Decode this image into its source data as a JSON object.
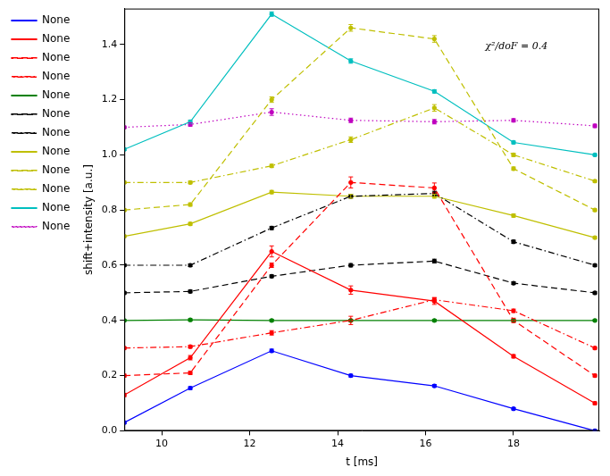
{
  "chart_data": {
    "type": "line",
    "x_label": "t [ms]",
    "y_label": "shift+intensity [a.u.]",
    "annotation": "χ²/doF = 0.4",
    "x": [
      9.15,
      10.65,
      12.5,
      14.3,
      16.2,
      18.0,
      19.85
    ],
    "xlim": [
      9.15,
      19.95
    ],
    "xticks": [
      10,
      12,
      14,
      16,
      18
    ],
    "ylim": [
      0,
      1.53
    ],
    "yticks": [
      {
        "value": 0,
        "label": "0.0"
      },
      0.2,
      0.4,
      0.6,
      0.8,
      {
        "value": 1,
        "label": "1.0"
      },
      1.2,
      1.4
    ],
    "grid": false,
    "legend": "upper left",
    "marker": "point",
    "series": [
      {
        "name": "None",
        "color": "#0000ff",
        "line_style": "solid",
        "values": [
          0.03,
          0.155,
          0.29,
          0.2,
          0.163,
          0.08,
          0.0
        ],
        "errors": [
          0.004,
          0.005,
          0.006,
          0.005,
          0.005,
          0.004,
          0.004
        ]
      },
      {
        "name": "None",
        "color": "#ff0000",
        "line_style": "solid",
        "values": [
          0.13,
          0.265,
          0.65,
          0.51,
          0.47,
          0.27,
          0.1
        ],
        "errors": [
          0.006,
          0.008,
          0.02,
          0.015,
          0.012,
          0.006,
          0.005
        ]
      },
      {
        "name": "None",
        "color": "#ff0000",
        "line_style": "dashed",
        "values": [
          0.2,
          0.21,
          0.6,
          0.9,
          0.88,
          0.4,
          0.2
        ],
        "errors": [
          0.005,
          0.006,
          0.008,
          0.02,
          0.018,
          0.008,
          0.005
        ]
      },
      {
        "name": "None",
        "color": "#ff0000",
        "line_style": "dashdot",
        "values": [
          0.3,
          0.305,
          0.355,
          0.4,
          0.475,
          0.435,
          0.3
        ],
        "errors": [
          0.004,
          0.005,
          0.008,
          0.015,
          0.008,
          0.006,
          0.004
        ]
      },
      {
        "name": "None",
        "color": "#008000",
        "line_style": "solid",
        "values": [
          0.4,
          0.402,
          0.4,
          0.4,
          0.4,
          0.4,
          0.4
        ],
        "errors": [
          0.003,
          0.004,
          0.004,
          0.004,
          0.004,
          0.004,
          0.003
        ]
      },
      {
        "name": "None",
        "color": "#000000",
        "line_style": "dashed",
        "values": [
          0.5,
          0.505,
          0.56,
          0.6,
          0.615,
          0.535,
          0.5
        ],
        "errors": [
          0.004,
          0.005,
          0.005,
          0.006,
          0.007,
          0.005,
          0.004
        ]
      },
      {
        "name": "None",
        "color": "#000000",
        "line_style": "dashdot",
        "values": [
          0.6,
          0.6,
          0.735,
          0.85,
          0.86,
          0.685,
          0.6
        ],
        "errors": [
          0.004,
          0.005,
          0.006,
          0.007,
          0.008,
          0.006,
          0.004
        ]
      },
      {
        "name": "None",
        "color": "#bfbf00",
        "line_style": "solid",
        "values": [
          0.705,
          0.75,
          0.865,
          0.85,
          0.85,
          0.78,
          0.7
        ],
        "errors": [
          0.004,
          0.005,
          0.006,
          0.007,
          0.007,
          0.006,
          0.004
        ]
      },
      {
        "name": "None",
        "color": "#bfbf00",
        "line_style": "dashed",
        "values": [
          0.8,
          0.82,
          1.2,
          1.46,
          1.42,
          0.95,
          0.8
        ],
        "errors": [
          0.004,
          0.006,
          0.01,
          0.012,
          0.012,
          0.006,
          0.004
        ]
      },
      {
        "name": "None",
        "color": "#bfbf00",
        "line_style": "dashdot",
        "values": [
          0.9,
          0.9,
          0.96,
          1.055,
          1.17,
          1.0,
          0.905
        ],
        "errors": [
          0.004,
          0.005,
          0.006,
          0.01,
          0.012,
          0.006,
          0.004
        ]
      },
      {
        "name": "None",
        "color": "#00bfbf",
        "line_style": "solid",
        "values": [
          1.02,
          1.12,
          1.51,
          1.34,
          1.23,
          1.045,
          1.0
        ],
        "errors": [
          0.004,
          0.006,
          0.008,
          0.008,
          0.006,
          0.005,
          0.004
        ]
      },
      {
        "name": "None",
        "color": "#bf00bf",
        "line_style": "dotted",
        "values": [
          1.1,
          1.11,
          1.155,
          1.125,
          1.12,
          1.125,
          1.105
        ],
        "errors": [
          0.004,
          0.006,
          0.012,
          0.008,
          0.008,
          0.006,
          0.006
        ]
      }
    ]
  }
}
